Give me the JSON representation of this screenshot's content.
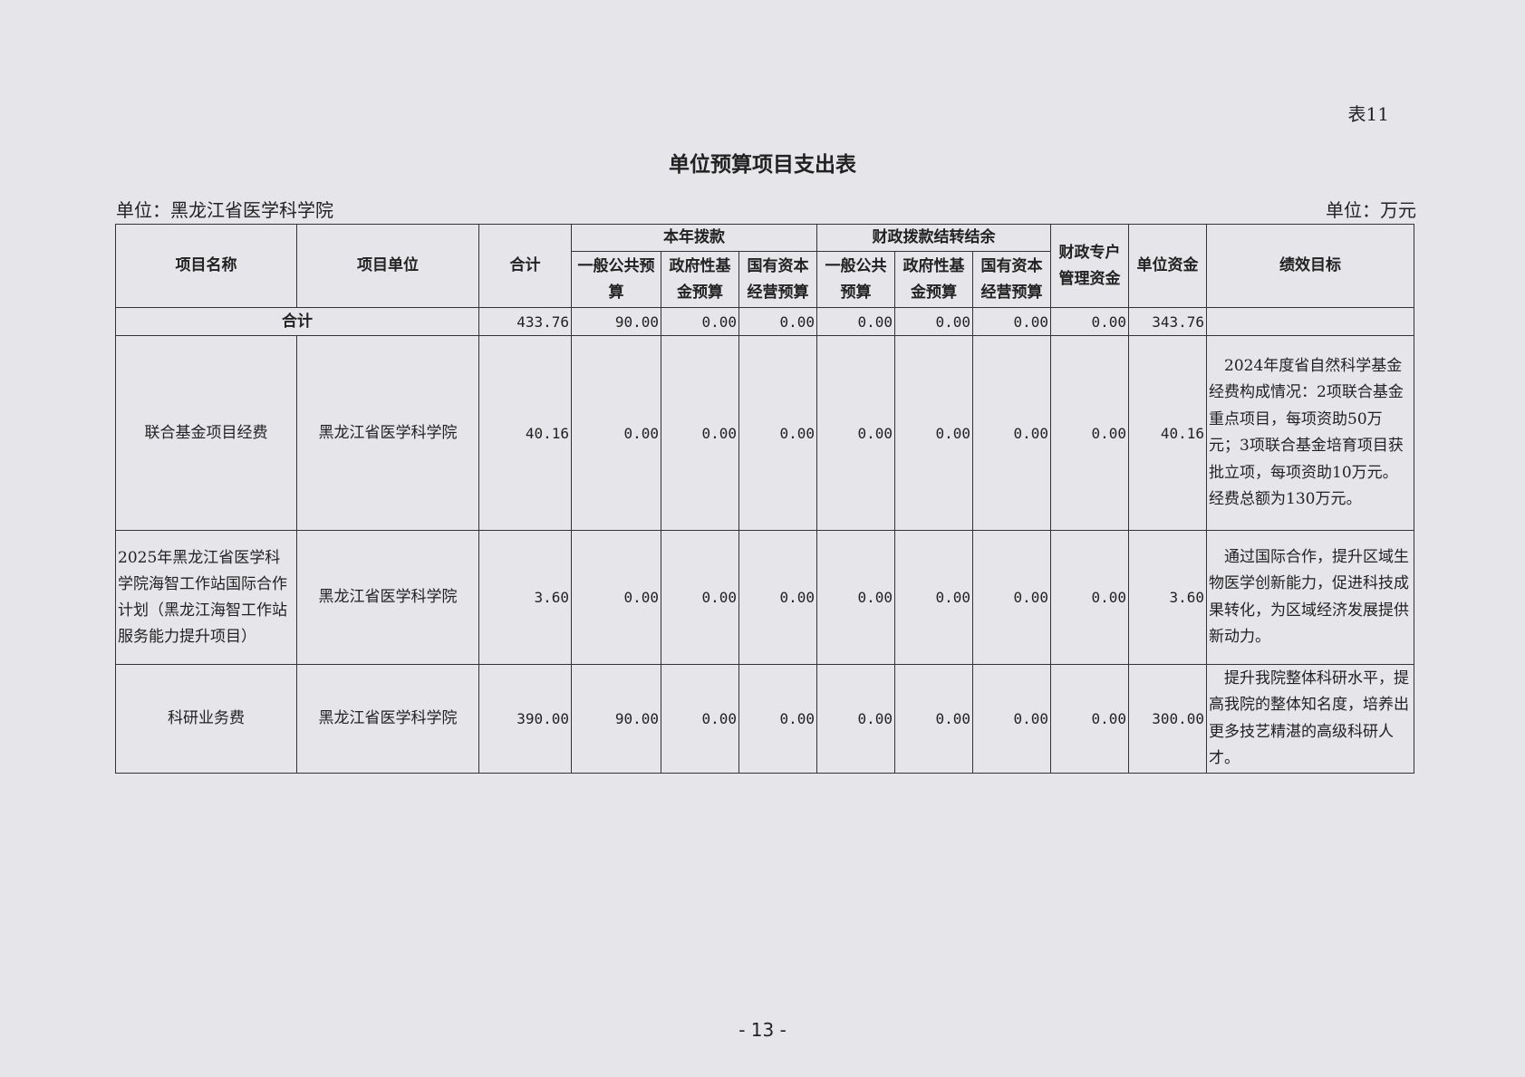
{
  "table_no": "表11",
  "title": "单位预算项目支出表",
  "unit_left": "单位：黑龙江省医学科学院",
  "unit_right": "单位：万元",
  "headers": {
    "name": "项目名称",
    "unit": "项目单位",
    "total": "合计",
    "group_current": "本年拨款",
    "group_carry": "财政拨款结转结余",
    "special": "财政专户管理资金",
    "own": "单位资金",
    "goal": "绩效目标",
    "sub": [
      "一般公共预算",
      "政府性基金预算",
      "国有资本经营预算",
      "一般公共预算",
      "政府性基金预算",
      "国有资本经营预算"
    ]
  },
  "total_row": {
    "label": "合计",
    "values": [
      "433.76",
      "90.00",
      "0.00",
      "0.00",
      "0.00",
      "0.00",
      "0.00",
      "0.00",
      "343.76"
    ],
    "goal": ""
  },
  "rows": [
    {
      "name": "联合基金项目经费",
      "unit": "黑龙江省医学科学院",
      "values": [
        "40.16",
        "0.00",
        "0.00",
        "0.00",
        "0.00",
        "0.00",
        "0.00",
        "0.00",
        "40.16"
      ],
      "goal": "　2024年度省自然科学基金经费构成情况：2项联合基金重点项目，每项资助50万元；3项联合基金培育项目获批立项，每项资助10万元。经费总额为130万元。"
    },
    {
      "name": "2025年黑龙江省医学科学院海智工作站国际合作计划（黑龙江海智工作站服务能力提升项目）",
      "unit": "黑龙江省医学科学院",
      "values": [
        "3.60",
        "0.00",
        "0.00",
        "0.00",
        "0.00",
        "0.00",
        "0.00",
        "0.00",
        "3.60"
      ],
      "goal": "　通过国际合作，提升区域生物医学创新能力，促进科技成果转化，为区域经济发展提供新动力。"
    },
    {
      "name": "科研业务费",
      "unit": "黑龙江省医学科学院",
      "values": [
        "390.00",
        "90.00",
        "0.00",
        "0.00",
        "0.00",
        "0.00",
        "0.00",
        "0.00",
        "300.00"
      ],
      "goal": "　提升我院整体科研水平，提高我院的整体知名度，培养出更多技艺精湛的高级科研人才。"
    }
  ],
  "page_number": "- 13 -"
}
